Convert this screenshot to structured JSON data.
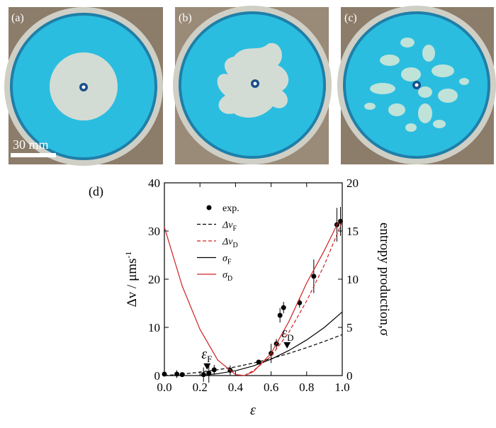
{
  "panels": {
    "a": "(a)",
    "b": "(b)",
    "c": "(c)",
    "scale_bar": "30 mm"
  },
  "chart_data": {
    "type": "line",
    "panel_label": "(d)",
    "xlabel": "ε",
    "ylabel": {
      "text": "Δv / μms",
      "superscript": "-1"
    },
    "y2label": "entropy production,σ",
    "xlim": [
      0,
      1
    ],
    "xticks": [
      {
        "value": 0,
        "label": "0.0"
      },
      0.2,
      0.4,
      0.6,
      0.8,
      {
        "value": 1,
        "label": "1.0"
      }
    ],
    "ylim": [
      0,
      40
    ],
    "yticks": [
      0,
      10,
      20,
      30,
      40
    ],
    "y2lim": [
      0,
      20
    ],
    "y2ticks": [
      0,
      5,
      10,
      15,
      20
    ],
    "series": [
      {
        "name": "exp.",
        "type": "scatter",
        "color": "#000000",
        "x": [
          0.0,
          0.07,
          0.1,
          0.22,
          0.25,
          0.28,
          0.37,
          0.53,
          0.6,
          0.63,
          0.65,
          0.67,
          0.76,
          0.84,
          0.97,
          0.99
        ],
        "values": [
          0.3,
          0.3,
          0.2,
          0.2,
          0.5,
          1.2,
          1.1,
          2.8,
          4.6,
          6.6,
          12.5,
          14.1,
          15.1,
          20.6,
          31.3,
          32.0
        ],
        "errors": [
          0.3,
          0.8,
          0.5,
          1.5,
          2.0,
          1.0,
          1.0,
          0.4,
          2.0,
          1.0,
          1.5,
          1.2,
          1.0,
          3.5,
          3.5,
          3.0
        ]
      },
      {
        "name": "Δv",
        "subscript": "F",
        "type": "line",
        "dash": true,
        "color": "#000000",
        "x": [
          0,
          0.1,
          0.2,
          0.3,
          0.4,
          0.5,
          0.6,
          0.7,
          0.8,
          0.9,
          1.0
        ],
        "values": [
          0,
          0.3,
          0.7,
          1.2,
          1.8,
          2.6,
          3.5,
          4.6,
          5.8,
          7.1,
          8.5
        ]
      },
      {
        "name": "Δv",
        "subscript": "D",
        "type": "line",
        "dash": true,
        "color": "#d02020",
        "x": [
          0.45,
          0.5,
          0.6,
          0.7,
          0.8,
          0.9,
          1.0
        ],
        "values": [
          0,
          1,
          4,
          9,
          15.5,
          23,
          32
        ]
      },
      {
        "name": "σ",
        "subscript": "F",
        "type": "line",
        "axis": "y2",
        "color": "#000000",
        "x": [
          0.2,
          0.3,
          0.4,
          0.5,
          0.6,
          0.7,
          0.8,
          0.9,
          1.0
        ],
        "values": [
          0,
          0.2,
          0.5,
          1,
          1.7,
          2.6,
          3.7,
          5.0,
          6.6
        ]
      },
      {
        "name": "σ",
        "subscript": "D",
        "type": "line",
        "axis": "y2",
        "color": "#d02020",
        "x": [
          0,
          0.1,
          0.2,
          0.3,
          0.4,
          0.45,
          0.5,
          0.6,
          0.7,
          0.8,
          0.9,
          0.98
        ],
        "values": [
          15.4,
          9.3,
          4.8,
          1.6,
          0.1,
          0,
          0.4,
          2.3,
          5.6,
          9.6,
          13,
          16
        ]
      }
    ],
    "annotations": [
      {
        "text": "ε",
        "subscript": "F",
        "x": 0.24,
        "y": 1.8
      },
      {
        "text": "ε",
        "subscript": "D",
        "x": 0.69,
        "y": 6.2
      }
    ]
  }
}
